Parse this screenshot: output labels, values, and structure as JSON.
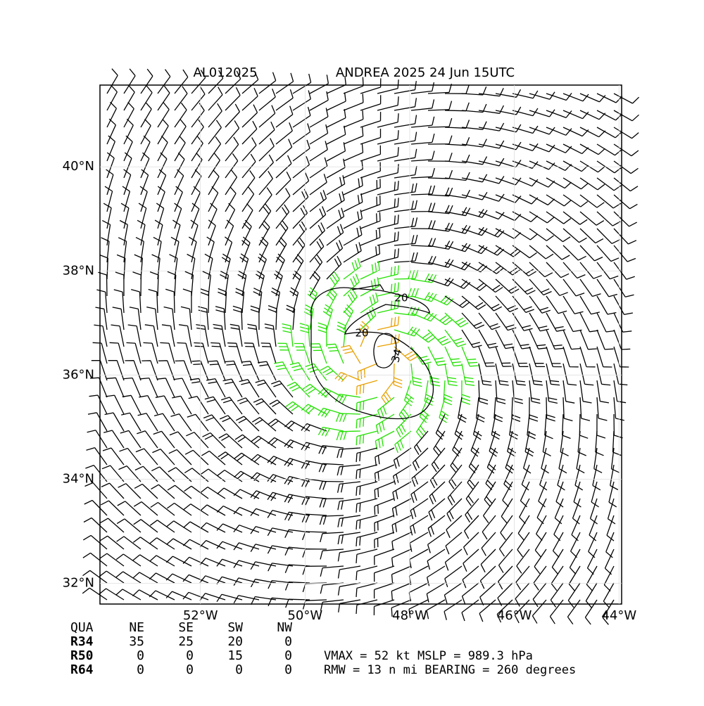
{
  "map": {
    "title_left": "AL012025",
    "title_right": "ANDREA 2025 24 Jun 15UTC",
    "xlim": [
      -53.92,
      -43.95
    ],
    "ylim": [
      31.6,
      41.57
    ],
    "xticks": [
      {
        "value": -52,
        "label": "52°W"
      },
      {
        "value": -50,
        "label": "50°W"
      },
      {
        "value": -48,
        "label": "48°W"
      },
      {
        "value": -46,
        "label": "46°W"
      },
      {
        "value": -44,
        "label": "44°W"
      }
    ],
    "yticks": [
      {
        "value": 32,
        "label": "32°N"
      },
      {
        "value": 34,
        "label": "34°N"
      },
      {
        "value": 36,
        "label": "36°N"
      },
      {
        "value": 38,
        "label": "38°N"
      },
      {
        "value": 40,
        "label": "40°N"
      }
    ],
    "contour_labels": [
      "20",
      "20",
      "34"
    ]
  },
  "table": {
    "header": [
      "QUA",
      "NE",
      "SE",
      "SW",
      "NW"
    ],
    "rows": [
      [
        "R34",
        "35",
        "25",
        "20",
        "0"
      ],
      [
        "R50",
        "0",
        "0",
        "15",
        "0"
      ],
      [
        "R64",
        "0",
        "0",
        "0",
        "0"
      ]
    ]
  },
  "stats": [
    "VMAX =  52 kt MSLP = 989.3 hPa",
    "RMW =  13 n mi BEARING = 260 degrees"
  ]
}
